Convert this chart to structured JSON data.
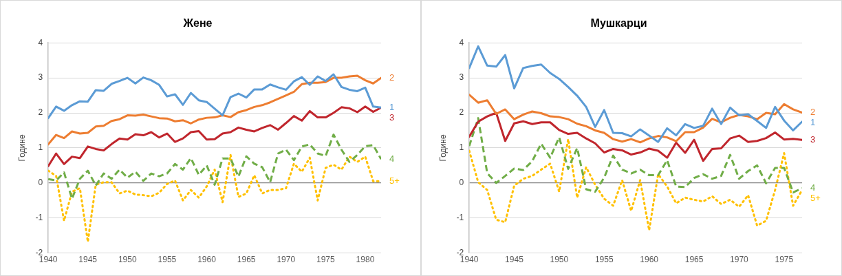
{
  "chart_data": [
    {
      "type": "line",
      "title": "Жене",
      "ylabel": "Године",
      "x": [
        1940,
        1941,
        1942,
        1943,
        1944,
        1945,
        1946,
        1947,
        1948,
        1949,
        1950,
        1951,
        1952,
        1953,
        1954,
        1955,
        1956,
        1957,
        1958,
        1959,
        1960,
        1961,
        1962,
        1963,
        1964,
        1965,
        1966,
        1967,
        1968,
        1969,
        1970,
        1971,
        1972,
        1973,
        1974,
        1975,
        1976,
        1977,
        1978,
        1979,
        1980,
        1981,
        1982
      ],
      "xlim": [
        1940,
        1982
      ],
      "xticks": [
        1940,
        1945,
        1950,
        1955,
        1960,
        1965,
        1970,
        1975,
        1980
      ],
      "ylim": [
        -2,
        4
      ],
      "yticks": [
        -2,
        -1,
        0,
        1,
        2,
        3,
        4
      ],
      "grid": "y",
      "legend": false,
      "marker": "none",
      "series": [
        {
          "name": "1",
          "color": "#5b9bd5",
          "line_style": "solid",
          "values": [
            1.85,
            2.18,
            2.06,
            2.22,
            2.33,
            2.32,
            2.65,
            2.63,
            2.83,
            2.91,
            3.0,
            2.84,
            3.01,
            2.93,
            2.8,
            2.47,
            2.53,
            2.23,
            2.57,
            2.36,
            2.31,
            2.12,
            1.93,
            2.45,
            2.55,
            2.44,
            2.67,
            2.67,
            2.81,
            2.73,
            2.66,
            2.9,
            3.02,
            2.8,
            3.04,
            2.91,
            3.1,
            2.74,
            2.66,
            2.62,
            2.72,
            2.18,
            2.15
          ]
        },
        {
          "name": "2",
          "color": "#ed7d31",
          "line_style": "solid",
          "values": [
            1.1,
            1.37,
            1.28,
            1.47,
            1.41,
            1.43,
            1.61,
            1.63,
            1.77,
            1.82,
            1.93,
            1.92,
            1.95,
            1.9,
            1.85,
            1.84,
            1.76,
            1.79,
            1.7,
            1.81,
            1.86,
            1.87,
            1.93,
            1.88,
            2.02,
            2.08,
            2.17,
            2.22,
            2.3,
            2.4,
            2.5,
            2.6,
            2.82,
            2.86,
            2.86,
            2.88,
            3.0,
            3.0,
            3.04,
            3.06,
            2.93,
            2.84,
            3.0
          ]
        },
        {
          "name": "3",
          "color": "#c0262d",
          "line_style": "solid",
          "values": [
            0.48,
            0.84,
            0.54,
            0.75,
            0.71,
            1.04,
            0.97,
            0.93,
            1.11,
            1.27,
            1.24,
            1.39,
            1.36,
            1.45,
            1.3,
            1.41,
            1.17,
            1.27,
            1.45,
            1.48,
            1.24,
            1.25,
            1.41,
            1.45,
            1.58,
            1.52,
            1.47,
            1.57,
            1.65,
            1.52,
            1.71,
            1.91,
            1.78,
            2.05,
            1.87,
            1.87,
            2.0,
            2.16,
            2.13,
            2.02,
            2.18,
            2.03,
            2.15
          ]
        },
        {
          "name": "4",
          "color": "#70ad47",
          "line_style": "dashed",
          "values": [
            0.11,
            0.07,
            0.3,
            -0.45,
            0.12,
            0.35,
            -0.07,
            0.27,
            0.12,
            0.38,
            0.15,
            0.32,
            0.06,
            0.27,
            0.19,
            0.27,
            0.54,
            0.38,
            0.71,
            0.23,
            0.5,
            -0.05,
            0.7,
            0.7,
            0.18,
            0.76,
            0.55,
            0.45,
            0.02,
            0.84,
            0.95,
            0.65,
            1.04,
            1.1,
            0.84,
            0.77,
            1.38,
            0.95,
            0.6,
            0.8,
            1.05,
            1.08,
            0.68
          ]
        },
        {
          "name": "5+",
          "color": "#ffc000",
          "line_style": "dotted",
          "values": [
            0.35,
            0.2,
            -1.08,
            -0.25,
            -0.15,
            -1.68,
            -0.05,
            0.02,
            0.02,
            -0.3,
            -0.22,
            -0.33,
            -0.35,
            -0.38,
            -0.28,
            -0.03,
            0.07,
            -0.5,
            -0.2,
            -0.42,
            -0.1,
            0.38,
            -0.55,
            0.8,
            -0.4,
            -0.3,
            0.22,
            -0.3,
            -0.2,
            -0.2,
            -0.15,
            0.55,
            0.32,
            0.72,
            -0.5,
            0.43,
            0.52,
            0.38,
            0.75,
            0.6,
            0.75,
            0.05,
            0.05
          ]
        }
      ]
    },
    {
      "type": "line",
      "title": "Мушкарци",
      "ylabel": "Године",
      "x": [
        1940,
        1941,
        1942,
        1943,
        1944,
        1945,
        1946,
        1947,
        1948,
        1949,
        1950,
        1951,
        1952,
        1953,
        1954,
        1955,
        1956,
        1957,
        1958,
        1959,
        1960,
        1961,
        1962,
        1963,
        1964,
        1965,
        1966,
        1967,
        1968,
        1969,
        1970,
        1971,
        1972,
        1973,
        1974,
        1975,
        1976,
        1977
      ],
      "xlim": [
        1940,
        1977
      ],
      "xticks": [
        1940,
        1945,
        1950,
        1955,
        1960,
        1965,
        1970,
        1975
      ],
      "ylim": [
        -2,
        4
      ],
      "yticks": [
        -2,
        -1,
        0,
        1,
        2,
        3,
        4
      ],
      "grid": "y",
      "legend": false,
      "marker": "none",
      "series": [
        {
          "name": "1",
          "color": "#5b9bd5",
          "line_style": "solid",
          "values": [
            3.28,
            3.9,
            3.35,
            3.32,
            3.65,
            2.7,
            3.28,
            3.34,
            3.38,
            3.14,
            2.97,
            2.74,
            2.49,
            2.17,
            1.6,
            2.08,
            1.43,
            1.42,
            1.33,
            1.53,
            1.35,
            1.17,
            1.56,
            1.36,
            1.68,
            1.57,
            1.63,
            2.12,
            1.68,
            2.15,
            1.93,
            1.96,
            1.77,
            1.57,
            2.17,
            1.78,
            1.5,
            1.75
          ]
        },
        {
          "name": "2",
          "color": "#ed7d31",
          "line_style": "solid",
          "values": [
            2.52,
            2.29,
            2.36,
            1.97,
            2.1,
            1.82,
            1.95,
            2.04,
            1.99,
            1.9,
            1.88,
            1.82,
            1.69,
            1.62,
            1.5,
            1.43,
            1.25,
            1.18,
            1.25,
            1.16,
            1.27,
            1.34,
            1.3,
            1.19,
            1.45,
            1.45,
            1.58,
            1.83,
            1.73,
            1.86,
            1.94,
            1.9,
            1.82,
            2.0,
            1.96,
            2.25,
            2.1,
            2.01
          ]
        },
        {
          "name": "3",
          "color": "#c0262d",
          "line_style": "solid",
          "values": [
            1.32,
            1.75,
            1.9,
            2.0,
            1.2,
            1.7,
            1.76,
            1.68,
            1.73,
            1.73,
            1.51,
            1.4,
            1.43,
            1.27,
            1.13,
            0.87,
            0.97,
            0.93,
            0.81,
            0.87,
            0.98,
            0.92,
            0.72,
            1.15,
            0.86,
            1.23,
            0.63,
            0.97,
            0.99,
            1.27,
            1.35,
            1.17,
            1.2,
            1.28,
            1.44,
            1.24,
            1.26,
            1.23
          ]
        },
        {
          "name": "4",
          "color": "#70ad47",
          "line_style": "dashed",
          "values": [
            1.05,
            1.85,
            0.28,
            0.0,
            0.2,
            0.41,
            0.37,
            0.62,
            1.12,
            0.72,
            1.3,
            0.4,
            1.0,
            -0.18,
            -0.25,
            0.15,
            0.78,
            0.38,
            0.27,
            0.38,
            0.22,
            0.22,
            0.65,
            -0.1,
            -0.12,
            0.14,
            0.25,
            0.12,
            0.2,
            0.8,
            0.12,
            0.34,
            0.5,
            -0.01,
            0.43,
            0.43,
            -0.27,
            -0.15
          ]
        },
        {
          "name": "5+",
          "color": "#ffc000",
          "line_style": "dotted",
          "values": [
            0.92,
            0.02,
            -0.2,
            -1.05,
            -1.12,
            -0.08,
            0.12,
            0.2,
            0.38,
            0.55,
            -0.25,
            1.25,
            -0.42,
            0.45,
            -0.05,
            -0.45,
            -0.65,
            0.08,
            -0.8,
            0.08,
            -1.35,
            0.25,
            -0.1,
            -0.58,
            -0.42,
            -0.48,
            -0.53,
            -0.38,
            -0.6,
            -0.48,
            -0.68,
            -0.35,
            -1.22,
            -1.08,
            -0.2,
            0.85,
            -0.65,
            -0.2
          ]
        }
      ]
    }
  ]
}
